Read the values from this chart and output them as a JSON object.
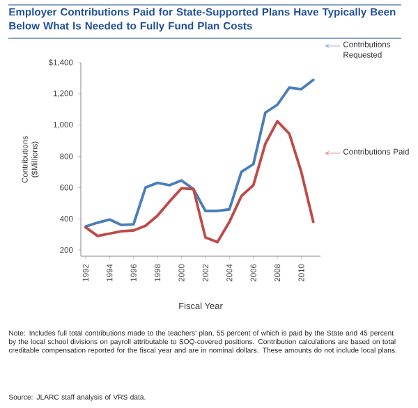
{
  "chart_data": {
    "type": "line",
    "title": "Employer Contributions Paid for State-Supported Plans Have Typically Been Below What Is Needed to Fully Fund Plan Costs",
    "xlabel": "Fiscal Year",
    "ylabel": "Contributions ($Millions)",
    "x": [
      1992,
      1993,
      1994,
      1995,
      1996,
      1997,
      1998,
      1999,
      2000,
      2001,
      2002,
      2003,
      2004,
      2005,
      2006,
      2007,
      2008,
      2009,
      2010,
      2011
    ],
    "series": [
      {
        "name": "Contributions Requested",
        "color": "#4a7ebb",
        "values": [
          350,
          375,
          395,
          360,
          365,
          600,
          630,
          615,
          645,
          590,
          450,
          450,
          460,
          700,
          750,
          1080,
          1130,
          1240,
          1230,
          1290
        ]
      },
      {
        "name": "Contributions Paid",
        "color": "#be4b48",
        "values": [
          345,
          290,
          305,
          320,
          325,
          355,
          420,
          510,
          595,
          590,
          280,
          250,
          380,
          545,
          615,
          880,
          1025,
          945,
          700,
          380
        ]
      }
    ],
    "xlim": [
      1991.6,
      2011.6
    ],
    "ylim": [
      160,
      1400
    ],
    "xticks": [
      1992,
      1994,
      1996,
      1998,
      2000,
      2002,
      2004,
      2006,
      2008,
      2010
    ],
    "yticks": [
      200,
      400,
      600,
      800,
      {
        "value": 1000,
        "label": "1,000"
      },
      {
        "value": 1200,
        "label": "1,200"
      },
      {
        "value": 1400,
        "label": "$1,400"
      }
    ],
    "marker": "none",
    "line_style": "solid",
    "annotations": [
      "Note: Includes full total contributions made to the teachers' plan, 55 percent of which is paid by the State and 45 percent by the local school divisions on payroll attributable to SOQ-covered positions. Contribution calculations are based on total creditable compensation reported for the fiscal year and are in nominal dollars. These amounts do not include local plans.",
      "Source: JLARC staff analysis of VRS data."
    ]
  }
}
